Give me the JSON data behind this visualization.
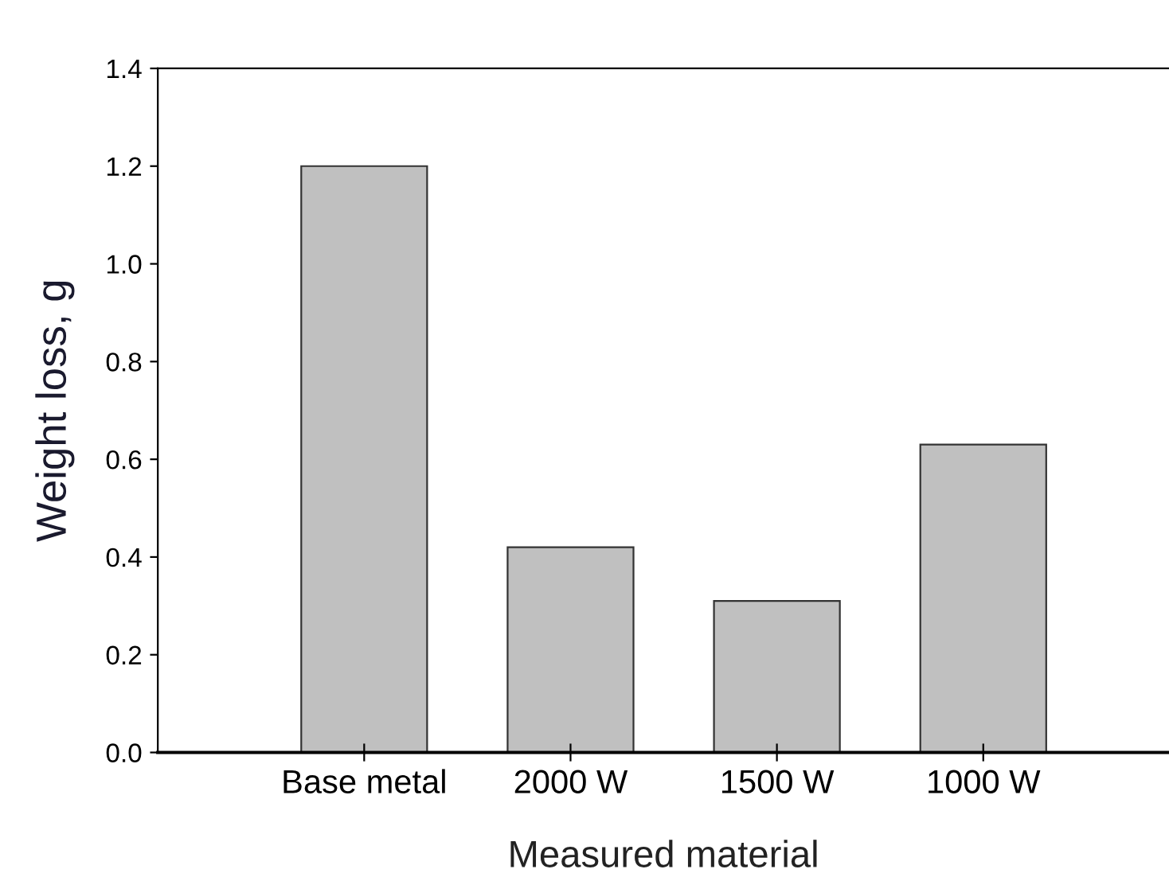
{
  "chart_data": {
    "type": "bar",
    "xlabel": "Measured material",
    "ylabel": "Weight loss, g",
    "categories": [
      "Base metal",
      "2000 W",
      "1500 W",
      "1000 W"
    ],
    "values": [
      1.2,
      0.42,
      0.31,
      0.63
    ],
    "color": "#c0c0c0",
    "ylim": [
      0,
      1.4
    ],
    "yticks": [
      {
        "value": 0,
        "label": "0.0"
      },
      {
        "value": 0.2,
        "label": "0.2"
      },
      {
        "value": 0.4,
        "label": "0.4"
      },
      {
        "value": 0.6,
        "label": "0.6"
      },
      {
        "value": 0.8,
        "label": "0.8"
      },
      {
        "value": 1.0,
        "label": "1.0"
      },
      {
        "value": 1.2,
        "label": "1.2"
      },
      {
        "value": 1.4,
        "label": "1.4"
      }
    ],
    "grid": false,
    "legend": false
  }
}
